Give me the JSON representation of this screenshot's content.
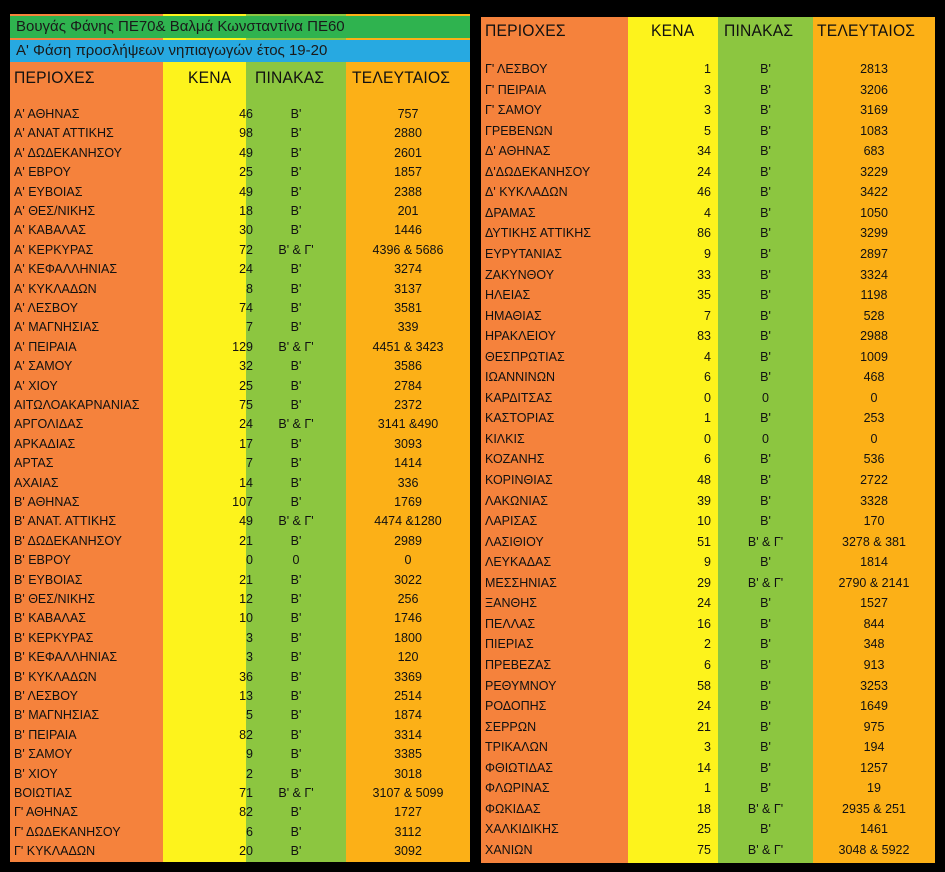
{
  "left": {
    "title_line1": "Βουγάς Φάνης ΠΕ70& Βαλμά Κωνσταντίνα ΠΕ60",
    "title_line2": "Α' Φάση προσλήψεων νηπιαγωγών έτος 19-20",
    "headers": {
      "area": "ΠΕΡΙΟΧΕΣ",
      "kena": "ΚΕΝΑ",
      "pinakas": "ΠΙΝΑΚΑΣ",
      "teleutaios": "ΤΕΛΕΥΤΑΙΟΣ"
    },
    "rows": [
      {
        "area": "Α' ΑΘΗΝΑΣ",
        "kena": "46",
        "pinakas": "Β'",
        "teleutaios": "757"
      },
      {
        "area": "Α' ΑΝΑΤ ΑΤΤΙΚΗΣ",
        "kena": "98",
        "pinakas": "Β'",
        "teleutaios": "2880"
      },
      {
        "area": "Α' ΔΩΔΕΚΑΝΗΣΟΥ",
        "kena": "49",
        "pinakas": "Β'",
        "teleutaios": "2601"
      },
      {
        "area": "Α' ΕΒΡΟΥ",
        "kena": "25",
        "pinakas": "Β'",
        "teleutaios": "1857"
      },
      {
        "area": "Α' ΕΥΒΟΙΑΣ",
        "kena": "49",
        "pinakas": "Β'",
        "teleutaios": "2388"
      },
      {
        "area": "Α' ΘΕΣ/ΝΙΚΗΣ",
        "kena": "18",
        "pinakas": "Β'",
        "teleutaios": "201"
      },
      {
        "area": "Α' ΚΑΒΑΛΑΣ",
        "kena": "30",
        "pinakas": "Β'",
        "teleutaios": "1446"
      },
      {
        "area": "Α' ΚΕΡΚΥΡΑΣ",
        "kena": "72",
        "pinakas": "Β' & Γ'",
        "teleutaios": "4396 & 5686"
      },
      {
        "area": "Α' ΚΕΦΑΛΛΗΝΙΑΣ",
        "kena": "24",
        "pinakas": "Β'",
        "teleutaios": "3274"
      },
      {
        "area": "Α' ΚΥΚΛΑΔΩΝ",
        "kena": "8",
        "pinakas": "Β'",
        "teleutaios": "3137"
      },
      {
        "area": "Α' ΛΕΣΒΟΥ",
        "kena": "74",
        "pinakas": "Β'",
        "teleutaios": "3581"
      },
      {
        "area": "Α' ΜΑΓΝΗΣΙΑΣ",
        "kena": "7",
        "pinakas": "Β'",
        "teleutaios": "339"
      },
      {
        "area": "Α' ΠΕΙΡΑΙΑ",
        "kena": "129",
        "pinakas": "Β' & Γ'",
        "teleutaios": "4451 & 3423"
      },
      {
        "area": "Α' ΣΑΜΟΥ",
        "kena": "32",
        "pinakas": "Β'",
        "teleutaios": "3586"
      },
      {
        "area": "Α' ΧΙΟΥ",
        "kena": "25",
        "pinakas": "Β'",
        "teleutaios": "2784"
      },
      {
        "area": "ΑΙΤΩΛΟΑΚΑΡΝΑΝΙΑΣ",
        "kena": "75",
        "pinakas": "Β'",
        "teleutaios": "2372"
      },
      {
        "area": "ΑΡΓΟΛΙΔΑΣ",
        "kena": "24",
        "pinakas": "Β' & Γ'",
        "teleutaios": "3141 &490"
      },
      {
        "area": "ΑΡΚΑΔΙΑΣ",
        "kena": "17",
        "pinakas": "Β'",
        "teleutaios": "3093"
      },
      {
        "area": "ΑΡΤΑΣ",
        "kena": "7",
        "pinakas": "Β'",
        "teleutaios": "1414"
      },
      {
        "area": "ΑΧΑΙΑΣ",
        "kena": "14",
        "pinakas": "Β'",
        "teleutaios": "336"
      },
      {
        "area": "Β' ΑΘΗΝΑΣ",
        "kena": "107",
        "pinakas": "Β'",
        "teleutaios": "1769"
      },
      {
        "area": "Β' ΑΝΑΤ. ΑΤΤΙΚΗΣ",
        "kena": "49",
        "pinakas": "Β' & Γ'",
        "teleutaios": "4474 &1280"
      },
      {
        "area": "Β' ΔΩΔΕΚΑΝΗΣΟΥ",
        "kena": "21",
        "pinakas": "Β'",
        "teleutaios": "2989"
      },
      {
        "area": "Β' ΕΒΡΟΥ",
        "kena": "0",
        "pinakas": "0",
        "teleutaios": "0"
      },
      {
        "area": "Β' ΕΥΒΟΙΑΣ",
        "kena": "21",
        "pinakas": "Β'",
        "teleutaios": "3022"
      },
      {
        "area": "Β' ΘΕΣ/ΝΙΚΗΣ",
        "kena": "12",
        "pinakas": "Β'",
        "teleutaios": "256"
      },
      {
        "area": "Β' ΚΑΒΑΛΑΣ",
        "kena": "10",
        "pinakas": "Β'",
        "teleutaios": "1746"
      },
      {
        "area": "Β' ΚΕΡΚΥΡΑΣ",
        "kena": "3",
        "pinakas": "Β'",
        "teleutaios": "1800"
      },
      {
        "area": "Β' ΚΕΦΑΛΛΗΝΙΑΣ",
        "kena": "3",
        "pinakas": "Β'",
        "teleutaios": "120"
      },
      {
        "area": "Β' ΚΥΚΛΑΔΩΝ",
        "kena": "36",
        "pinakas": "Β'",
        "teleutaios": "3369"
      },
      {
        "area": "Β' ΛΕΣΒΟΥ",
        "kena": "13",
        "pinakas": "Β'",
        "teleutaios": "2514"
      },
      {
        "area": "Β' ΜΑΓΝΗΣΙΑΣ",
        "kena": "5",
        "pinakas": "Β'",
        "teleutaios": "1874"
      },
      {
        "area": "Β' ΠΕΙΡΑΙΑ",
        "kena": "82",
        "pinakas": "Β'",
        "teleutaios": "3314"
      },
      {
        "area": "Β' ΣΑΜΟΥ",
        "kena": "9",
        "pinakas": "Β'",
        "teleutaios": "3385"
      },
      {
        "area": "Β' ΧΙΟΥ",
        "kena": "2",
        "pinakas": "Β'",
        "teleutaios": "3018"
      },
      {
        "area": "ΒΟΙΩΤΙΑΣ",
        "kena": "71",
        "pinakas": "Β' & Γ'",
        "teleutaios": "3107 & 5099"
      },
      {
        "area": "Γ' ΑΘΗΝΑΣ",
        "kena": "82",
        "pinakas": "Β'",
        "teleutaios": "1727"
      },
      {
        "area": "Γ' ΔΩΔΕΚΑΝΗΣΟΥ",
        "kena": "6",
        "pinakas": "Β'",
        "teleutaios": "3112"
      },
      {
        "area": "Γ' ΚΥΚΛΑΔΩΝ",
        "kena": "20",
        "pinakas": "Β'",
        "teleutaios": "3092"
      }
    ]
  },
  "right": {
    "headers": {
      "area": "ΠΕΡΙΟΧΕΣ",
      "kena": "ΚΕΝΑ",
      "pinakas": "ΠΙΝΑΚΑΣ",
      "teleutaios": "ΤΕΛΕΥΤΑΙΟΣ"
    },
    "rows": [
      {
        "area": "Γ' ΛΕΣΒΟΥ",
        "kena": "1",
        "pinakas": "Β'",
        "teleutaios": "2813"
      },
      {
        "area": "Γ' ΠΕΙΡΑΙΑ",
        "kena": "3",
        "pinakas": "Β'",
        "teleutaios": "3206"
      },
      {
        "area": "Γ' ΣΑΜΟΥ",
        "kena": "3",
        "pinakas": "Β'",
        "teleutaios": "3169"
      },
      {
        "area": "ΓΡΕΒΕΝΩΝ",
        "kena": "5",
        "pinakas": "Β'",
        "teleutaios": "1083"
      },
      {
        "area": "Δ' ΑΘΗΝΑΣ",
        "kena": "34",
        "pinakas": "Β'",
        "teleutaios": "683"
      },
      {
        "area": "Δ'ΔΩΔΕΚΑΝΗΣΟΥ",
        "kena": "24",
        "pinakas": "Β'",
        "teleutaios": "3229"
      },
      {
        "area": "Δ' ΚΥΚΛΑΔΩΝ",
        "kena": "46",
        "pinakas": "Β'",
        "teleutaios": "3422"
      },
      {
        "area": "ΔΡΑΜΑΣ",
        "kena": "4",
        "pinakas": "Β'",
        "teleutaios": "1050"
      },
      {
        "area": "ΔΥΤΙΚΗΣ ΑΤΤΙΚΗΣ",
        "kena": "86",
        "pinakas": "Β'",
        "teleutaios": "3299"
      },
      {
        "area": "ΕΥΡΥΤΑΝΙΑΣ",
        "kena": "9",
        "pinakas": "Β'",
        "teleutaios": "2897"
      },
      {
        "area": "ΖΑΚΥΝΘΟΥ",
        "kena": "33",
        "pinakas": "Β'",
        "teleutaios": "3324"
      },
      {
        "area": "ΗΛΕΙΑΣ",
        "kena": "35",
        "pinakas": "Β'",
        "teleutaios": "1198"
      },
      {
        "area": "ΗΜΑΘΙΑΣ",
        "kena": "7",
        "pinakas": "Β'",
        "teleutaios": "528"
      },
      {
        "area": "ΗΡΑΚΛΕΙΟΥ",
        "kena": "83",
        "pinakas": "Β'",
        "teleutaios": "2988"
      },
      {
        "area": "ΘΕΣΠΡΩΤΙΑΣ",
        "kena": "4",
        "pinakas": "Β'",
        "teleutaios": "1009"
      },
      {
        "area": "ΙΩΑΝΝΙΝΩΝ",
        "kena": "6",
        "pinakas": "Β'",
        "teleutaios": "468"
      },
      {
        "area": "ΚΑΡΔΙΤΣΑΣ",
        "kena": "0",
        "pinakas": "0",
        "teleutaios": "0"
      },
      {
        "area": "ΚΑΣΤΟΡΙΑΣ",
        "kena": "1",
        "pinakas": "Β'",
        "teleutaios": "253"
      },
      {
        "area": "ΚΙΛΚΙΣ",
        "kena": "0",
        "pinakas": "0",
        "teleutaios": "0"
      },
      {
        "area": "ΚΟΖΑΝΗΣ",
        "kena": "6",
        "pinakas": "Β'",
        "teleutaios": "536"
      },
      {
        "area": "ΚΟΡΙΝΘΙΑΣ",
        "kena": "48",
        "pinakas": "Β'",
        "teleutaios": "2722"
      },
      {
        "area": "ΛΑΚΩΝΙΑΣ",
        "kena": "39",
        "pinakas": "Β'",
        "teleutaios": "3328"
      },
      {
        "area": "ΛΑΡΙΣΑΣ",
        "kena": "10",
        "pinakas": "Β'",
        "teleutaios": "170"
      },
      {
        "area": "ΛΑΣΙΘΙΟΥ",
        "kena": "51",
        "pinakas": "Β' & Γ'",
        "teleutaios": "3278 & 381"
      },
      {
        "area": "ΛΕΥΚΑΔΑΣ",
        "kena": "9",
        "pinakas": "Β'",
        "teleutaios": "1814"
      },
      {
        "area": "ΜΕΣΣΗΝΙΑΣ",
        "kena": "29",
        "pinakas": "Β' & Γ'",
        "teleutaios": "2790 & 2141"
      },
      {
        "area": "ΞΑΝΘΗΣ",
        "kena": "24",
        "pinakas": "Β'",
        "teleutaios": "1527"
      },
      {
        "area": "ΠΕΛΛΑΣ",
        "kena": "16",
        "pinakas": "Β'",
        "teleutaios": "844"
      },
      {
        "area": "ΠΙΕΡΙΑΣ",
        "kena": "2",
        "pinakas": "Β'",
        "teleutaios": "348"
      },
      {
        "area": "ΠΡΕΒΕΖΑΣ",
        "kena": "6",
        "pinakas": "Β'",
        "teleutaios": "913"
      },
      {
        "area": "ΡΕΘΥΜΝΟΥ",
        "kena": "58",
        "pinakas": "Β'",
        "teleutaios": "3253"
      },
      {
        "area": "ΡΟΔΟΠΗΣ",
        "kena": "24",
        "pinakas": "Β'",
        "teleutaios": "1649"
      },
      {
        "area": "ΣΕΡΡΩΝ",
        "kena": "21",
        "pinakas": "Β'",
        "teleutaios": "975"
      },
      {
        "area": "ΤΡΙΚΑΛΩΝ",
        "kena": "3",
        "pinakas": "Β'",
        "teleutaios": "194"
      },
      {
        "area": "ΦΘΙΩΤΙΔΑΣ",
        "kena": "14",
        "pinakas": "Β'",
        "teleutaios": "1257"
      },
      {
        "area": "ΦΛΩΡΙΝΑΣ",
        "kena": "1",
        "pinakas": "Β'",
        "teleutaios": "19"
      },
      {
        "area": "ΦΩΚΙΔΑΣ",
        "kena": "18",
        "pinakas": "Β' & Γ'",
        "teleutaios": "2935 & 251"
      },
      {
        "area": "ΧΑΛΚΙΔΙΚΗΣ",
        "kena": "25",
        "pinakas": "Β'",
        "teleutaios": "1461"
      },
      {
        "area": "ΧΑΝΙΩΝ",
        "kena": "75",
        "pinakas": "Β' & Γ'",
        "teleutaios": "3048 & 5922"
      }
    ]
  },
  "colors": {
    "area_column": "#f5823c",
    "kena_column": "#fdf31c",
    "pinakas_column": "#8cc640",
    "teleutaios_column": "#fcb017",
    "title_green": "#2fb34f",
    "title_blue": "#27a9e1",
    "background": "#000000"
  }
}
